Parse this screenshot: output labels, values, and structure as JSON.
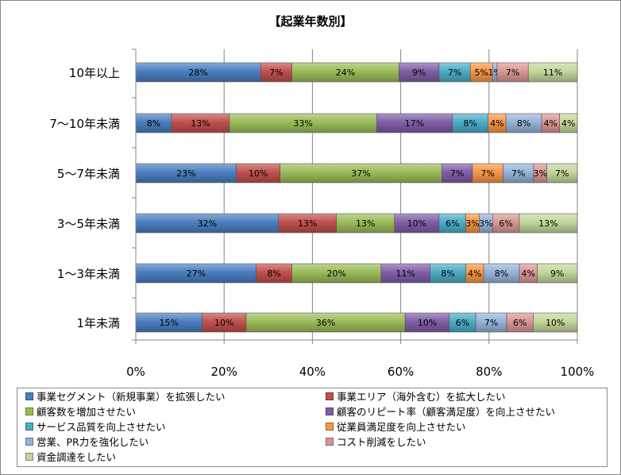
{
  "chart_data": {
    "type": "bar",
    "orientation": "horizontal",
    "stacked": "percent",
    "title": "【起業年数別】",
    "categories": [
      "1年未満",
      "1～3年未満",
      "3～5年未満",
      "5～7年未満",
      "7～10年未満",
      "10年以上"
    ],
    "series": [
      {
        "name": "事業セグメント（新規事業）を拡張したい",
        "color": "#4a7ebf",
        "values": [
          15,
          27,
          32,
          23,
          8,
          28
        ],
        "labels": [
          "15%",
          "27%",
          "32%",
          "23%",
          "8%",
          "28%"
        ]
      },
      {
        "name": "事業エリア（海外含む）を拡大したい",
        "color": "#c0504d",
        "values": [
          10,
          8,
          13,
          10,
          13,
          7
        ],
        "labels": [
          "10%",
          "8%",
          "13%",
          "10%",
          "13%",
          "7%"
        ]
      },
      {
        "name": "顧客数を増加させたい",
        "color": "#9bbb59",
        "values": [
          36,
          20,
          13,
          37,
          33,
          24
        ],
        "labels": [
          "36%",
          "20%",
          "13%",
          "37%",
          "33%",
          "24%"
        ]
      },
      {
        "name": "顧客のリピート率（顧客満足度）を向上させたい",
        "color": "#7f5fa6",
        "values": [
          10,
          11,
          10,
          7,
          17,
          9
        ],
        "labels": [
          "10%",
          "11%",
          "10%",
          "7%",
          "17%",
          "9%"
        ]
      },
      {
        "name": "サービス品質を向上させたい",
        "color": "#4bacc6",
        "values": [
          6,
          8,
          6,
          0,
          8,
          7
        ],
        "labels": [
          "6%",
          "8%",
          "6%",
          "",
          "8%",
          "7%"
        ]
      },
      {
        "name": "従業員満足度を向上させたい",
        "color": "#f79646",
        "values": [
          0,
          4,
          3,
          7,
          4,
          5
        ],
        "labels": [
          "",
          "4%",
          "3%",
          "7%",
          "4%",
          "5%"
        ]
      },
      {
        "name": "営業、PR力を強化したい",
        "color": "#95b3d7",
        "values": [
          7,
          8,
          3,
          7,
          8,
          1
        ],
        "labels": [
          "7%",
          "8%",
          "3%",
          "7%",
          "8%",
          "1%"
        ]
      },
      {
        "name": "コスト削減をしたい",
        "color": "#d99694",
        "values": [
          6,
          4,
          6,
          3,
          4,
          7
        ],
        "labels": [
          "6%",
          "4%",
          "6%",
          "3%",
          "4%",
          "7%"
        ]
      },
      {
        "name": "資金調達をしたい",
        "color": "#c3d69b",
        "values": [
          10,
          9,
          13,
          7,
          4,
          11
        ],
        "labels": [
          "10%",
          "9%",
          "13%",
          "7%",
          "4%",
          "11%"
        ]
      }
    ],
    "xlim": [
      0,
      100
    ],
    "xticks": [
      "0%",
      "20%",
      "40%",
      "60%",
      "80%",
      "100%"
    ],
    "grid": true,
    "legend_position": "bottom"
  }
}
